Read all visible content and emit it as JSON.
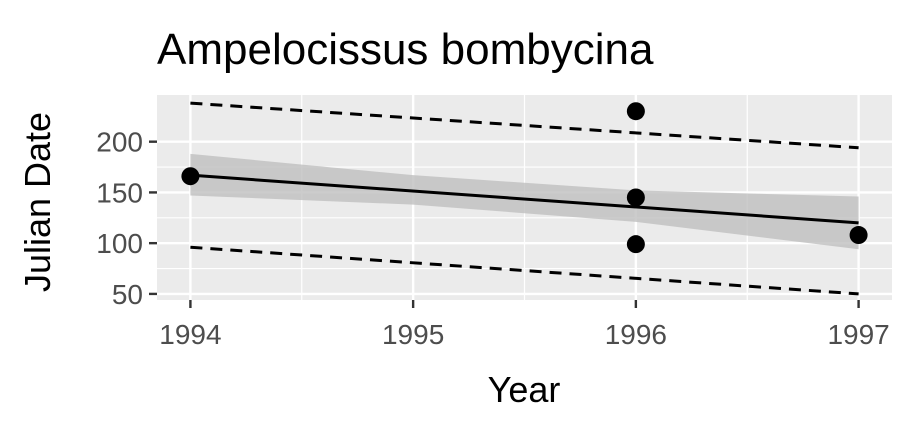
{
  "chart_data": {
    "type": "scatter",
    "title": "Ampelocissus bombycina",
    "xlabel": "Year",
    "ylabel": "Julian Date",
    "xlim": [
      1993.85,
      1997.15
    ],
    "ylim": [
      44,
      246
    ],
    "x_ticks": [
      1994,
      1995,
      1996,
      1997
    ],
    "y_ticks": [
      50,
      100,
      150,
      200
    ],
    "grid": true,
    "points": [
      {
        "x": 1994,
        "y": 166
      },
      {
        "x": 1996,
        "y": 230
      },
      {
        "x": 1996,
        "y": 145
      },
      {
        "x": 1996,
        "y": 99
      },
      {
        "x": 1997,
        "y": 108
      }
    ],
    "fit_line": {
      "x": [
        1994,
        1997
      ],
      "y": [
        167,
        120
      ]
    },
    "confidence_band": {
      "x": [
        1994,
        1995,
        1996,
        1997
      ],
      "upper": [
        188,
        167,
        152,
        146
      ],
      "lower": [
        147,
        138,
        121,
        94
      ]
    },
    "prediction_upper": {
      "x": [
        1994,
        1997
      ],
      "y": [
        238,
        194
      ]
    },
    "prediction_lower": {
      "x": [
        1994,
        1997
      ],
      "y": [
        96,
        50
      ]
    },
    "colors": {
      "panel": "#ebebeb",
      "grid": "#ffffff",
      "band": "#bfbfbf",
      "line": "#000000",
      "point": "#000000"
    }
  }
}
